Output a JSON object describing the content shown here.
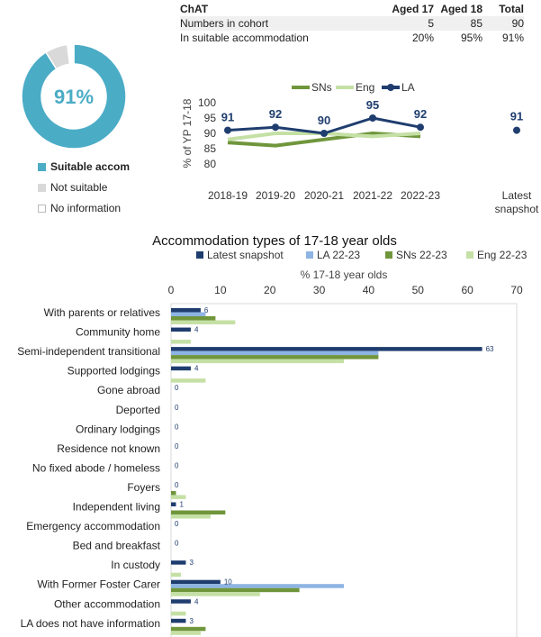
{
  "donut": {
    "center_label": "91%",
    "legend": [
      {
        "label": "Suitable accom",
        "color": "#4bacc6"
      },
      {
        "label": "Not suitable",
        "color": "#d9d9d9"
      },
      {
        "label": "No information",
        "color": "#ffffff"
      }
    ]
  },
  "cohort_table": {
    "headers": [
      "ChAT",
      "Aged 17",
      "Aged 18",
      "Total"
    ],
    "rows": [
      {
        "label": "Numbers in cohort",
        "values": [
          "5",
          "85",
          "90"
        ]
      },
      {
        "label": "In suitable accommodation",
        "values": [
          "20%",
          "95%",
          "91%"
        ]
      }
    ]
  },
  "chart_data": [
    {
      "type": "pie",
      "labels": [
        "Suitable accom",
        "Not suitable",
        "No information"
      ],
      "values": [
        91,
        7,
        2
      ],
      "colors": [
        "#4bacc6",
        "#d9d9d9",
        "#ffffff"
      ]
    },
    {
      "type": "line",
      "ylabel": "% of YP 17-18",
      "categories": [
        "2018-19",
        "2019-20",
        "2020-21",
        "2021-22",
        "2022-23"
      ],
      "ylim": [
        80,
        100
      ],
      "yticks": [
        80,
        85,
        90,
        95,
        100
      ],
      "series": [
        {
          "name": "SNs",
          "color": "#70963c",
          "values": [
            87,
            86,
            88,
            90,
            89
          ]
        },
        {
          "name": "Eng",
          "color": "#c5e0a5",
          "values": [
            88,
            90,
            90,
            89,
            90
          ]
        },
        {
          "name": "LA",
          "color": "#1f3d6e",
          "values": [
            91,
            92,
            90,
            95,
            92
          ]
        }
      ],
      "latest": {
        "label": "Latest snapshot",
        "value": 91
      }
    },
    {
      "type": "bar",
      "title": "Accommodation types of 17-18 year olds",
      "xlabel": "% 17-18 year olds",
      "xlim": [
        0,
        70
      ],
      "xticks": [
        0,
        10,
        20,
        30,
        40,
        50,
        60,
        70
      ],
      "categories": [
        "With parents or relatives",
        "Community home",
        "Semi-independent transitional",
        "Supported lodgings",
        "Gone abroad",
        "Deported",
        "Ordinary lodgings",
        "Residence not known",
        "No fixed abode / homeless",
        "Foyers",
        "Independent living",
        "Emergency accommodation",
        "Bed and breakfast",
        "In custody",
        "With Former Foster Carer",
        "Other accommodation",
        "LA does not have information"
      ],
      "series": [
        {
          "name": "Latest snapshot",
          "color": "#1f3d6e",
          "values": [
            6,
            4,
            63,
            4,
            0,
            0,
            0,
            0,
            0,
            0,
            1,
            0,
            0,
            3,
            10,
            4,
            3
          ],
          "labels": [
            "6",
            "4",
            "63",
            "4",
            "0",
            "0",
            "0",
            "0",
            "0",
            "0",
            "1",
            "0",
            "0",
            "3",
            "10",
            "4",
            "3"
          ]
        },
        {
          "name": "LA 22-23",
          "color": "#8eb4e3",
          "values": [
            7,
            0,
            42,
            0,
            0,
            0,
            0,
            0,
            0,
            0,
            0,
            0,
            0,
            0,
            35,
            0,
            0
          ]
        },
        {
          "name": "SNs 22-23",
          "color": "#70963c",
          "values": [
            9,
            0,
            42,
            0,
            0,
            0,
            0,
            0,
            0,
            1,
            11,
            0,
            0,
            0,
            26,
            0,
            7
          ]
        },
        {
          "name": "Eng 22-23",
          "color": "#c5e0a5",
          "values": [
            13,
            4,
            35,
            7,
            0,
            0,
            0,
            0,
            0,
            3,
            8,
            0,
            0,
            2,
            18,
            3,
            6
          ]
        }
      ]
    }
  ]
}
